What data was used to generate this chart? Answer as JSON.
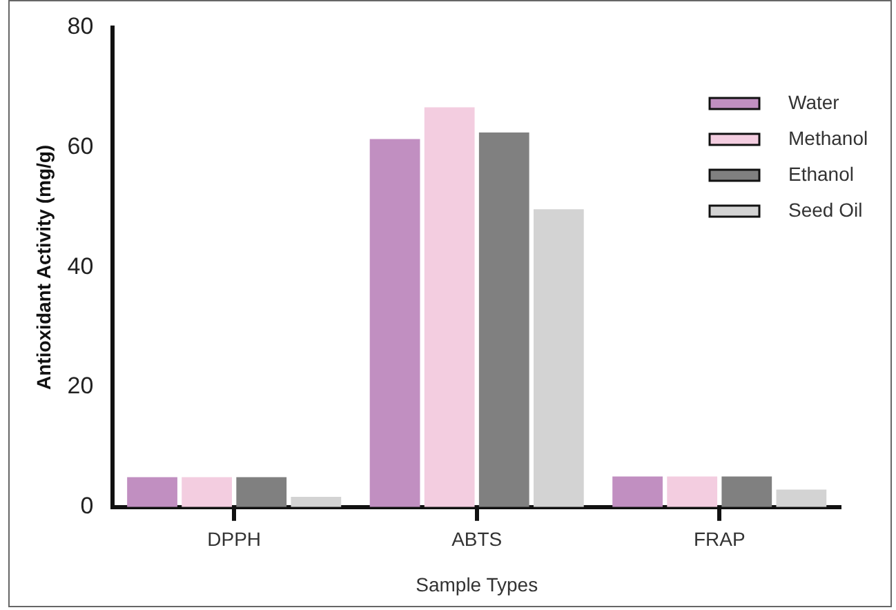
{
  "chart_data": {
    "type": "bar",
    "xlabel": "Sample Types",
    "ylabel": "Antioxidant Activity (mg/g)",
    "categories": [
      "DPPH",
      "ABTS",
      "FRAP"
    ],
    "series": [
      {
        "name": "Water",
        "color": "#c18fc1",
        "values": [
          5.0,
          61.4,
          5.1
        ]
      },
      {
        "name": "Methanol",
        "color": "#f3cde0",
        "values": [
          5.0,
          66.7,
          5.1
        ]
      },
      {
        "name": "Ethanol",
        "color": "#808080",
        "values": [
          5.0,
          62.5,
          5.1
        ]
      },
      {
        "name": "Seed Oil",
        "color": "#d3d3d3",
        "values": [
          1.7,
          49.7,
          2.9
        ]
      }
    ],
    "ylim": [
      0,
      80
    ],
    "yticks": [
      0,
      20,
      40,
      60,
      80
    ],
    "grid": false,
    "legend": "top right"
  }
}
